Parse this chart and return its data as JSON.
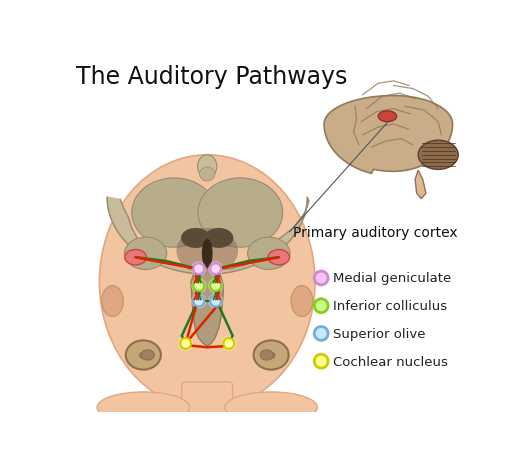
{
  "title": "The Auditory Pathways",
  "title_fontsize": 17,
  "bg_color": "#ffffff",
  "skin_color": "#F2C4A0",
  "skin_dark": "#E0A882",
  "skin_shadow": "#E8B898",
  "brain_outer": "#C8BC9A",
  "brain_inner": "#B8AD8A",
  "brain_dark": "#5A4A38",
  "brain_mid": "#888070",
  "cochlea_color": "#8B7050",
  "cochlea_light": "#C4A878",
  "red_path": "#DD2200",
  "green_path": "#227722",
  "legend_items": [
    {
      "label": "Medial geniculate",
      "face": "#F5C0F5",
      "edge": "#D088D0"
    },
    {
      "label": "Inferior colliculus",
      "face": "#CCFF88",
      "edge": "#88CC22"
    },
    {
      "label": "Superior olive",
      "face": "#C8E8FF",
      "edge": "#7AABDD"
    },
    {
      "label": "Cochlear nucleus",
      "face": "#FFFF88",
      "edge": "#CCCC00"
    }
  ],
  "annotation_text": "Primary auditory cortex",
  "annotation_fontsize": 10,
  "sidebar_brain_color": "#C8AD88",
  "sidebar_cerebellum_color": "#8B6B4A",
  "sidebar_skin": "#E0B890",
  "sidebar_highlight": "#CC4444"
}
